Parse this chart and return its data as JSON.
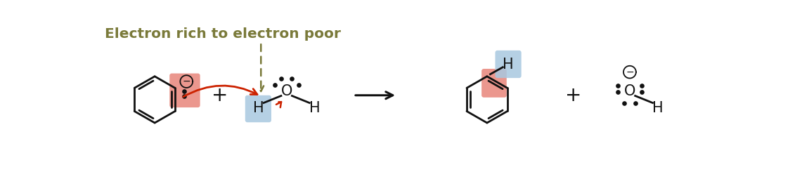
{
  "bg_color": "#ffffff",
  "title_text": "Electron rich to electron poor",
  "title_color": "#7a7a3a",
  "title_fontsize": 14.5,
  "salmon_color": "#e8857a",
  "blue_color": "#a8c8e0",
  "red_arrow_color": "#cc2200",
  "dashed_arrow_color": "#7a7a3a",
  "bond_color": "#111111",
  "dot_color": "#111111",
  "fig_width": 11.41,
  "fig_height": 2.65,
  "dpi": 100,
  "xlim": [
    0,
    11.41
  ],
  "ylim": [
    0,
    2.65
  ]
}
